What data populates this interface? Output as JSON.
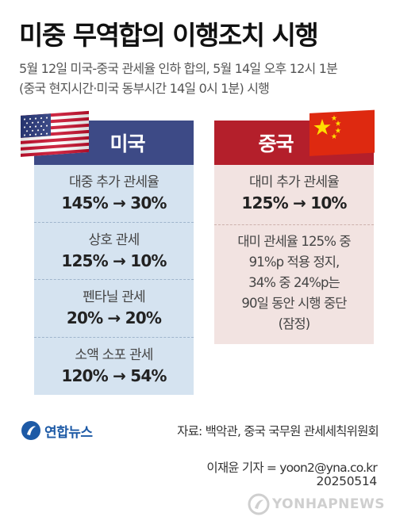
{
  "title": "미중 무역합의 이행조치 시행",
  "subtitle": {
    "line1": "5월 12일 미국-중국 관세율 인하 합의, 5월 14일 오후 12시 1분",
    "line2": "(중국 현지시간·미국 동부시간 14일 0시 1분) 시행"
  },
  "us": {
    "header": "미국",
    "items": [
      {
        "label": "대중 추가 관세율",
        "value": "145% → 30%"
      },
      {
        "label": "상호 관세",
        "value": "125% → 10%"
      },
      {
        "label": "펜타닐 관세",
        "value": "20% → 20%"
      },
      {
        "label": "소액 소포 관세",
        "value": "120% → 54%"
      }
    ]
  },
  "china": {
    "header": "중국",
    "item": {
      "label": "대미 추가 관세율",
      "value": "125% → 10%"
    },
    "note_lines": [
      "대미 관세율 125% 중",
      "91%p 적용 정지,",
      "34% 중 24%p는",
      "90일 동안 시행 중단",
      "(잠정)"
    ]
  },
  "footer": {
    "logo": "연합뉴스",
    "source": "자료: 백악관, 중국 국무원 관세세칙위원회",
    "credit": "이재윤 기자 = yoon2@yna.co.kr",
    "date": "20250514",
    "watermark": "YONHAPNEWS"
  },
  "colors": {
    "us_header": "#3d4a86",
    "us_body": "#d5e3f0",
    "cn_header": "#b41f2b",
    "cn_body": "#f2e3e1"
  },
  "icons": {
    "us_flag": "us-flag-icon",
    "cn_flag": "china-flag-icon",
    "logo": "yonhap-logo-icon"
  }
}
